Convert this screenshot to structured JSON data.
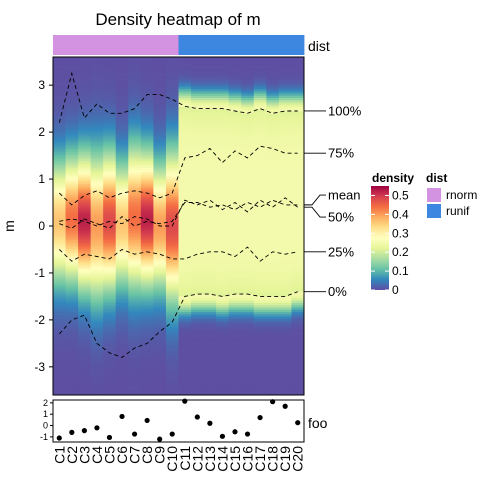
{
  "title": "Density heatmap of m",
  "chart_data": {
    "type": "heatmap",
    "title": "Density heatmap of m",
    "ylabel": "m",
    "ylim": [
      -3.6,
      3.6
    ],
    "yticks": [
      -3,
      -2,
      -1,
      0,
      1,
      2,
      3
    ],
    "columns": [
      "C1",
      "C2",
      "C3",
      "C4",
      "C5",
      "C6",
      "C7",
      "C8",
      "C9",
      "C10",
      "C11",
      "C12",
      "C13",
      "C14",
      "C15",
      "C16",
      "C17",
      "C18",
      "C19",
      "C20"
    ],
    "dist": {
      "label": "dist",
      "values": [
        "rnorm",
        "rnorm",
        "rnorm",
        "rnorm",
        "rnorm",
        "rnorm",
        "rnorm",
        "rnorm",
        "rnorm",
        "rnorm",
        "runif",
        "runif",
        "runif",
        "runif",
        "runif",
        "runif",
        "runif",
        "runif",
        "runif",
        "runif"
      ],
      "colors": {
        "rnorm": "#d493e0",
        "runif": "#3d87e0"
      }
    },
    "quantiles": {
      "100%": [
        2.2,
        3.25,
        2.3,
        2.6,
        2.4,
        2.4,
        2.5,
        2.8,
        2.8,
        2.7,
        2.55,
        2.5,
        2.5,
        2.5,
        2.45,
        2.4,
        2.5,
        2.4,
        2.45,
        2.45
      ],
      "75%": [
        0.7,
        0.45,
        0.65,
        0.75,
        0.6,
        0.7,
        0.75,
        0.7,
        0.6,
        0.7,
        1.45,
        1.5,
        1.65,
        1.35,
        1.6,
        1.45,
        1.7,
        1.65,
        1.55,
        1.55
      ],
      "mean": [
        0.05,
        -0.05,
        0.15,
        0.05,
        -0.05,
        0.2,
        0.0,
        0.1,
        0.05,
        0.1,
        0.5,
        0.5,
        0.4,
        0.45,
        0.35,
        0.5,
        0.4,
        0.55,
        0.45,
        0.45
      ],
      "50%": [
        0.1,
        0.15,
        0.1,
        0.0,
        0.1,
        0.05,
        0.2,
        0.15,
        0.0,
        0.0,
        0.55,
        0.45,
        0.55,
        0.35,
        0.5,
        0.3,
        0.55,
        0.4,
        0.6,
        0.4
      ],
      "25%": [
        -0.5,
        -0.75,
        -0.6,
        -0.65,
        -0.7,
        -0.5,
        -0.6,
        -0.55,
        -0.6,
        -0.7,
        -0.7,
        -0.6,
        -0.55,
        -0.55,
        -0.65,
        -0.45,
        -0.75,
        -0.55,
        -0.6,
        -0.55
      ],
      "0%": [
        -2.3,
        -2.0,
        -1.9,
        -2.5,
        -2.7,
        -2.8,
        -2.6,
        -2.5,
        -2.25,
        -2.05,
        -1.5,
        -1.45,
        -1.45,
        -1.5,
        -1.45,
        -1.45,
        -1.5,
        -1.5,
        -1.5,
        -1.4
      ]
    },
    "quantile_labels": [
      "100%",
      "75%",
      "mean",
      "50%",
      "25%",
      "0%"
    ],
    "density_legend": {
      "title": "density",
      "ticks": [
        0,
        0.1,
        0.2,
        0.3,
        0.4,
        0.5
      ],
      "range": [
        0,
        0.55
      ],
      "colors": [
        "#5e4fa2",
        "#3288bd",
        "#66c2a5",
        "#abdda4",
        "#e6f598",
        "#ffffbf",
        "#fee08b",
        "#fdae61",
        "#f46d43",
        "#d53e4f",
        "#9e0142"
      ]
    },
    "dist_legend": {
      "title": "dist",
      "entries": [
        {
          "label": "rnorm",
          "color": "#d493e0"
        },
        {
          "label": "runif",
          "color": "#3d87e0"
        }
      ]
    },
    "foo": {
      "label": "foo",
      "yticks": [
        -1,
        0,
        1,
        2
      ],
      "ylim": [
        -1.45,
        2.25
      ],
      "values": [
        -1.1,
        -0.6,
        -0.45,
        -0.2,
        -1.05,
        0.8,
        -0.75,
        0.45,
        -1.2,
        -0.75,
        2.15,
        0.75,
        0.2,
        -0.95,
        -0.55,
        -0.75,
        0.7,
        2.1,
        1.7,
        0.25
      ]
    }
  }
}
